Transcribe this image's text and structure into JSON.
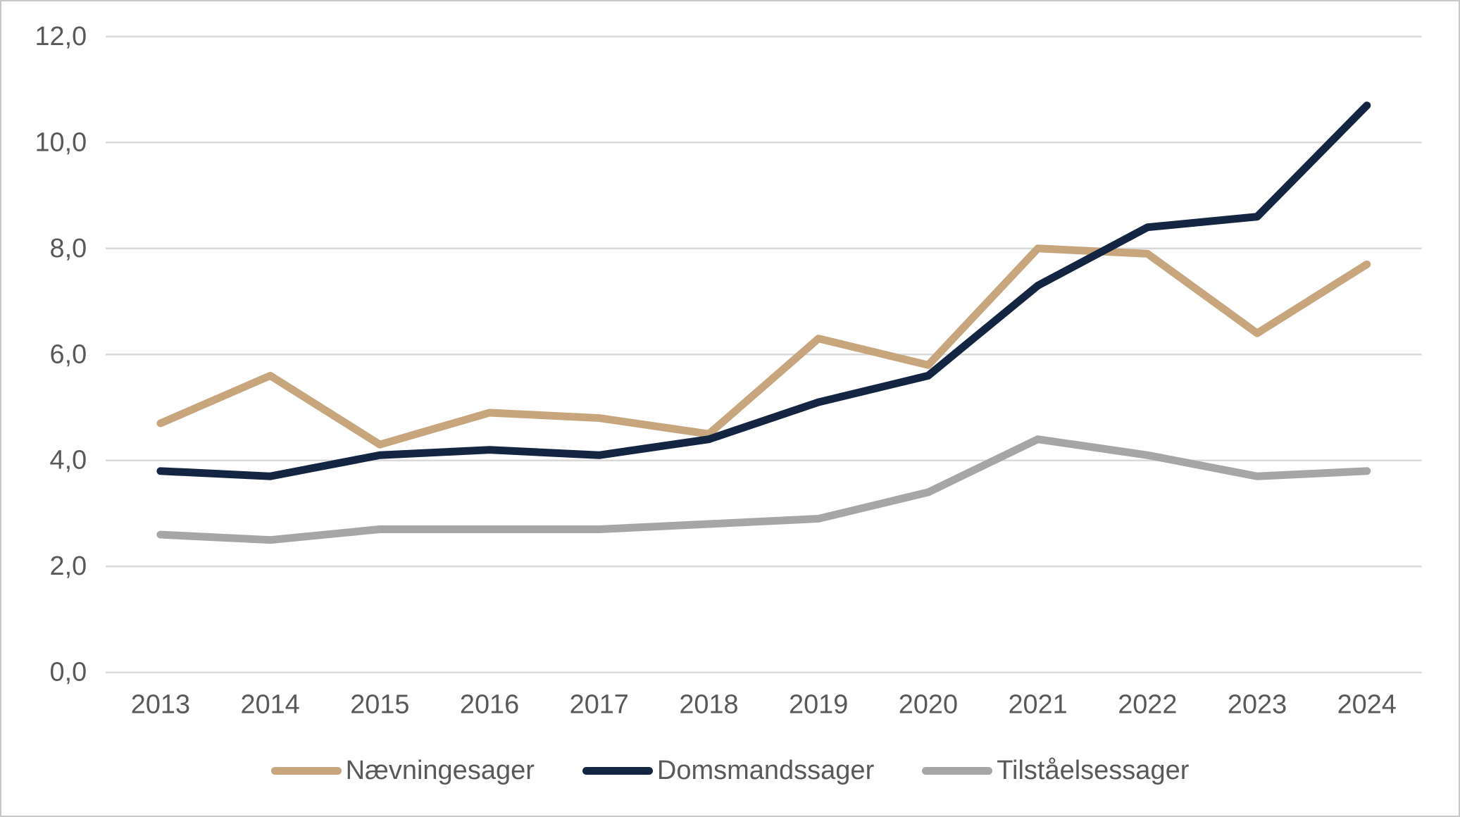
{
  "chart_data": {
    "type": "line",
    "title": "",
    "xlabel": "",
    "ylabel": "",
    "categories": [
      "2013",
      "2014",
      "2015",
      "2016",
      "2017",
      "2018",
      "2019",
      "2020",
      "2021",
      "2022",
      "2023",
      "2024"
    ],
    "series": [
      {
        "name": "Nævningesager",
        "color": "#c7a57d",
        "values": [
          4.7,
          5.6,
          4.3,
          4.9,
          4.8,
          4.5,
          6.3,
          5.8,
          8.0,
          7.9,
          6.4,
          7.7
        ]
      },
      {
        "name": "Domsmandssager",
        "color": "#132540",
        "values": [
          3.8,
          3.7,
          4.1,
          4.2,
          4.1,
          4.4,
          5.1,
          5.6,
          7.3,
          8.4,
          8.6,
          10.7
        ]
      },
      {
        "name": "Tilståelsessager",
        "color": "#a6a6a6",
        "values": [
          2.6,
          2.5,
          2.7,
          2.7,
          2.7,
          2.8,
          2.9,
          3.4,
          4.4,
          4.1,
          3.7,
          3.8
        ]
      }
    ],
    "ylim": [
      0,
      12
    ],
    "y_ticks": [
      0,
      2,
      4,
      6,
      8,
      10,
      12
    ],
    "y_tick_labels": [
      "0,0",
      "2,0",
      "4,0",
      "6,0",
      "8,0",
      "10,0",
      "12,0"
    ],
    "grid": true,
    "legend_position": "bottom"
  },
  "styles": {
    "grid_color": "#d9d9d9",
    "tick_label_color": "#595959",
    "background": "#ffffff",
    "border_color": "#c8c8c8"
  }
}
